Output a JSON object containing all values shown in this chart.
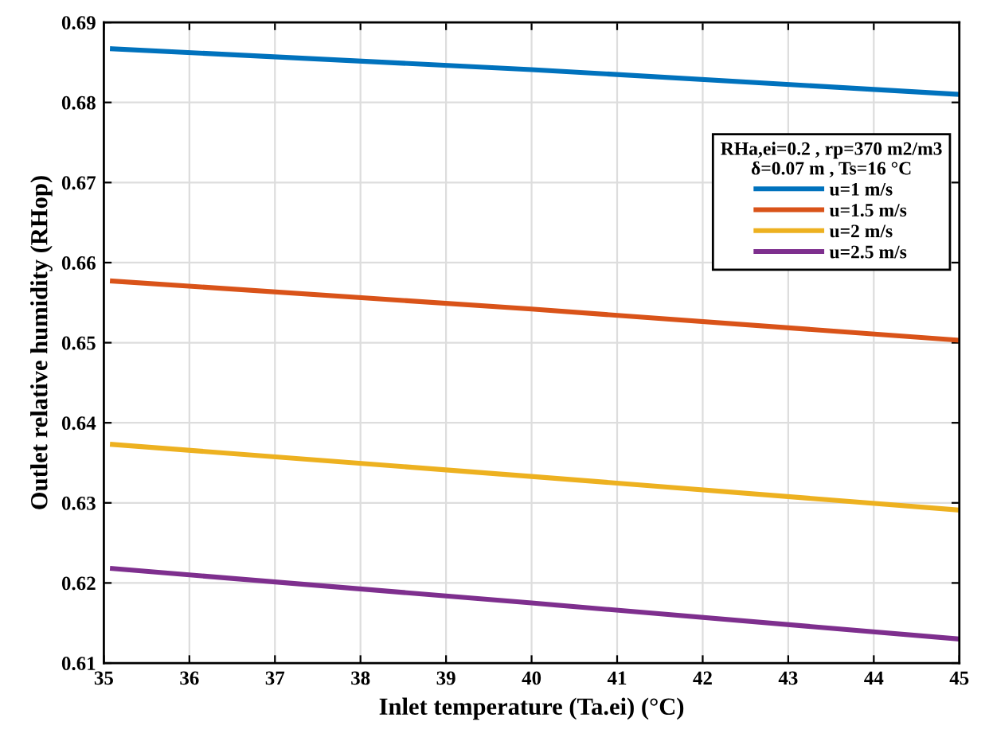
{
  "chart_data": {
    "type": "line",
    "xlabel": "Inlet temperature (Ta.ei) (°C)",
    "ylabel": "Outlet relative humidity (RHop)",
    "legend_title": "RHa,ei=0.2 , rp=370 m2/m3\nδ=0.07 m , Ts=16 °C",
    "x": [
      35.1,
      40,
      45
    ],
    "series": [
      {
        "name": "u=1 m/s",
        "color": "#0072bd",
        "values": [
          0.6867,
          0.6841,
          0.681
        ]
      },
      {
        "name": "u=1.5 m/s",
        "color": "#d95319",
        "values": [
          0.6577,
          0.6542,
          0.6503
        ]
      },
      {
        "name": "u=2 m/s",
        "color": "#edb120",
        "values": [
          0.6373,
          0.6333,
          0.6291
        ]
      },
      {
        "name": "u=2.5 m/s",
        "color": "#7e2f8e",
        "values": [
          0.6218,
          0.6175,
          0.613
        ]
      }
    ],
    "xlim": [
      35,
      45
    ],
    "xticks": [
      35,
      36,
      37,
      38,
      39,
      40,
      41,
      42,
      43,
      44,
      45
    ],
    "ylim": [
      0.61,
      0.69
    ],
    "yticks": [
      0.61,
      0.62,
      0.63,
      0.64,
      0.65,
      0.66,
      0.67,
      0.68,
      0.69
    ],
    "grid": true,
    "legend": "top right",
    "line_style": "solid",
    "marker": "none"
  }
}
